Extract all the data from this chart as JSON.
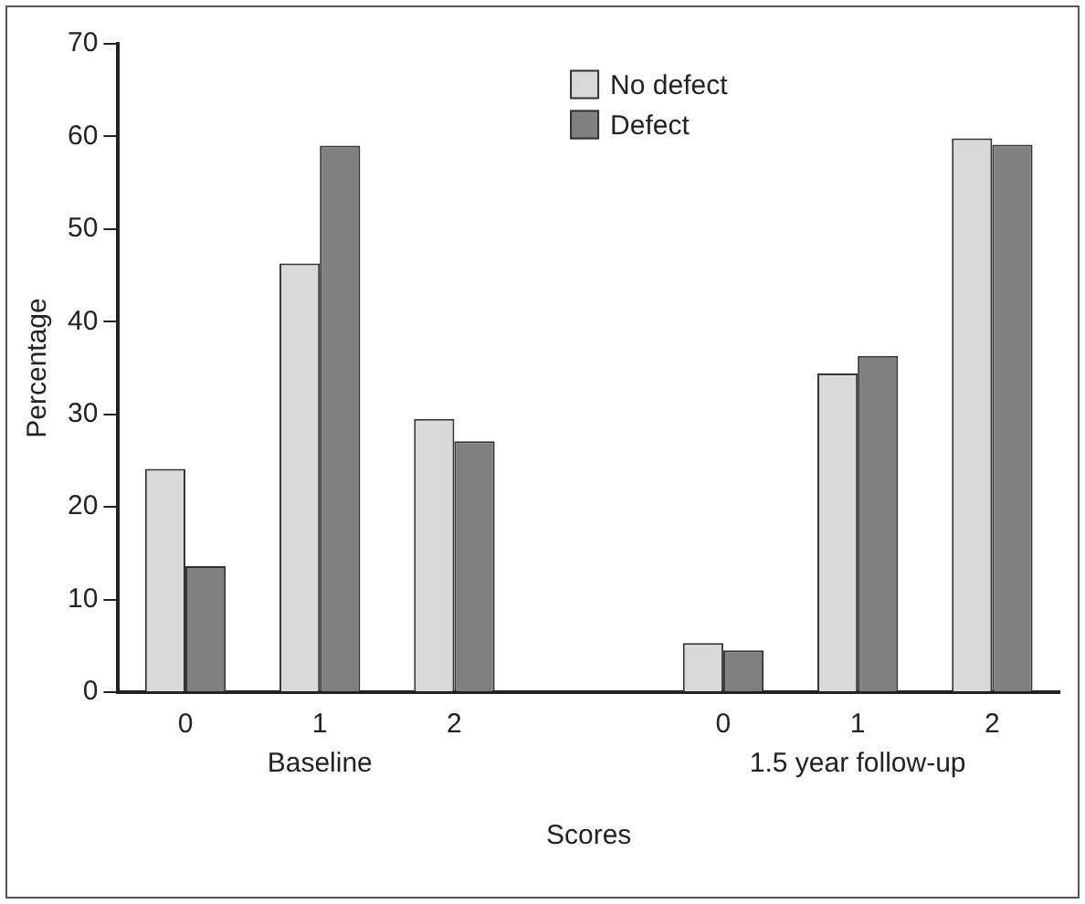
{
  "chart_data": {
    "type": "bar",
    "ylabel": "Percentage",
    "xlabel": "Scores",
    "categories": [
      "0",
      "1",
      "2",
      null,
      "0",
      "1",
      "2"
    ],
    "series": [
      {
        "name": "No defect",
        "color": "#d9d9d9",
        "values": [
          24.1,
          46.3,
          29.5,
          null,
          5.3,
          34.4,
          59.8
        ]
      },
      {
        "name": "Defect",
        "color": "#808080",
        "values": [
          13.6,
          59.0,
          27.1,
          null,
          4.5,
          36.3,
          59.1
        ]
      }
    ],
    "ylim": [
      0,
      70
    ],
    "yticks": [
      0,
      10,
      20,
      30,
      40,
      50,
      60,
      70
    ],
    "grid": false,
    "legend": "top",
    "annotations": [
      "Baseline",
      "1.5 year follow-up"
    ]
  }
}
